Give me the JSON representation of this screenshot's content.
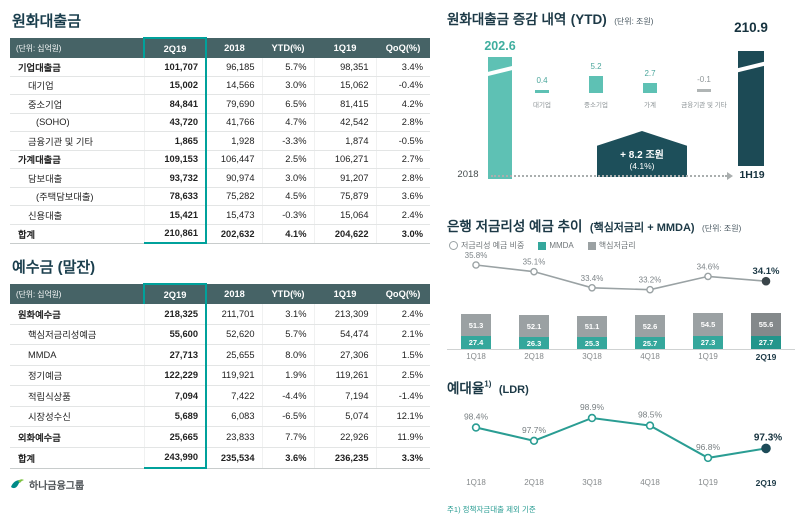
{
  "brand": {
    "logo_text": "하나금융그룹",
    "teal": "#00a19b",
    "dark": "#1c3946"
  },
  "tables": {
    "unit_label": "(단위: 십억원)",
    "columns": [
      "2Q19",
      "2018",
      "YTD(%)",
      "1Q19",
      "QoQ(%)"
    ],
    "loans": {
      "title": "원화대출금",
      "rows": [
        {
          "label": "기업대출금",
          "bold": true,
          "indent": 0,
          "values": [
            "101,707",
            "96,185",
            "5.7%",
            "98,351",
            "3.4%"
          ]
        },
        {
          "label": "대기업",
          "indent": 1,
          "values": [
            "15,002",
            "14,566",
            "3.0%",
            "15,062",
            "-0.4%"
          ]
        },
        {
          "label": "중소기업",
          "indent": 1,
          "values": [
            "84,841",
            "79,690",
            "6.5%",
            "81,415",
            "4.2%"
          ]
        },
        {
          "label": "(SOHO)",
          "indent": 2,
          "values": [
            "43,720",
            "41,766",
            "4.7%",
            "42,542",
            "2.8%"
          ]
        },
        {
          "label": "금융기관 및 기타",
          "indent": 1,
          "values": [
            "1,865",
            "1,928",
            "-3.3%",
            "1,874",
            "-0.5%"
          ]
        },
        {
          "label": "가계대출금",
          "bold": true,
          "indent": 0,
          "values": [
            "109,153",
            "106,447",
            "2.5%",
            "106,271",
            "2.7%"
          ]
        },
        {
          "label": "담보대출",
          "indent": 1,
          "values": [
            "93,732",
            "90,974",
            "3.0%",
            "91,207",
            "2.8%"
          ]
        },
        {
          "label": "(주택담보대출)",
          "indent": 2,
          "values": [
            "78,633",
            "75,282",
            "4.5%",
            "75,879",
            "3.6%"
          ]
        },
        {
          "label": "신용대출",
          "indent": 1,
          "values": [
            "15,421",
            "15,473",
            "-0.3%",
            "15,064",
            "2.4%"
          ]
        },
        {
          "label": "합계",
          "total": true,
          "indent": 0,
          "values": [
            "210,861",
            "202,632",
            "4.1%",
            "204,622",
            "3.0%"
          ]
        }
      ]
    },
    "deposits": {
      "title": "예수금 (말잔)",
      "rows": [
        {
          "label": "원화예수금",
          "bold": true,
          "indent": 0,
          "values": [
            "218,325",
            "211,701",
            "3.1%",
            "213,309",
            "2.4%"
          ]
        },
        {
          "label": "핵심저금리성예금",
          "indent": 1,
          "values": [
            "55,600",
            "52,620",
            "5.7%",
            "54,474",
            "2.1%"
          ]
        },
        {
          "label": "MMDA",
          "indent": 1,
          "values": [
            "27,713",
            "25,655",
            "8.0%",
            "27,306",
            "1.5%"
          ]
        },
        {
          "label": "정기예금",
          "indent": 1,
          "values": [
            "122,229",
            "119,921",
            "1.9%",
            "119,261",
            "2.5%"
          ]
        },
        {
          "label": "적립식상품",
          "indent": 1,
          "values": [
            "7,094",
            "7,422",
            "-4.4%",
            "7,194",
            "-1.4%"
          ]
        },
        {
          "label": "시장성수신",
          "indent": 1,
          "values": [
            "5,689",
            "6,083",
            "-6.5%",
            "5,074",
            "12.1%"
          ]
        },
        {
          "label": "외화예수금",
          "bold": true,
          "indent": 0,
          "values": [
            "25,665",
            "23,833",
            "7.7%",
            "22,926",
            "11.9%"
          ]
        },
        {
          "label": "합계",
          "total": true,
          "indent": 0,
          "values": [
            "243,990",
            "235,534",
            "3.6%",
            "236,235",
            "3.3%"
          ]
        }
      ]
    }
  },
  "chart_data": [
    {
      "type": "waterfall",
      "title": "원화대출금 증감 내역",
      "title_suffix": "(YTD)",
      "unit": "(단위: 조원)",
      "start": {
        "label": "2018",
        "value": 202.6
      },
      "deltas": [
        {
          "label": "대기업",
          "value": 0.4
        },
        {
          "label": "중소기업",
          "value": 5.2
        },
        {
          "label": "가계",
          "value": 2.7
        },
        {
          "label": "금융기관 및 기타",
          "value": -0.1
        }
      ],
      "end": {
        "label": "1H19",
        "value": 210.9
      },
      "annotation": {
        "line1": "+ 8.2 조원",
        "line2": "(4.1%)"
      },
      "colors": {
        "start_bar": "#5ec1b4",
        "end_bar": "#1c4a55",
        "delta_pos": "#5ec1b4",
        "delta_neg": "#b0b5b5",
        "callout": "#1d4f5a"
      }
    },
    {
      "type": "bar+line",
      "title": "은행 저금리성 예금 추이",
      "title_suffix": "(핵심저금리 + MMDA)",
      "unit": "(단위: 조원)",
      "categories": [
        "1Q18",
        "2Q18",
        "3Q18",
        "4Q18",
        "1Q19",
        "2Q19"
      ],
      "line_series": {
        "name": "저금리성 예금 비중",
        "values": [
          35.8,
          35.1,
          33.4,
          33.2,
          34.6,
          34.1
        ],
        "unit": "%",
        "color": "#9aa2a4"
      },
      "bar_series": [
        {
          "name": "MMDA",
          "values": [
            27.4,
            26.3,
            25.3,
            25.7,
            27.3,
            27.7
          ],
          "color": "#35a79c",
          "color_last": "#23958b"
        },
        {
          "name": "핵심저금리",
          "values": [
            51.3,
            52.1,
            51.1,
            52.6,
            54.5,
            55.6
          ],
          "color": "#9ba1a3",
          "color_last": "#84898b"
        }
      ],
      "legend_position": "top"
    },
    {
      "type": "line",
      "title": "예대율",
      "title_sup": "1)",
      "title_suffix": "(LDR)",
      "categories": [
        "1Q18",
        "2Q18",
        "3Q18",
        "4Q18",
        "1Q19",
        "2Q19"
      ],
      "values": [
        98.4,
        97.7,
        98.9,
        98.5,
        96.8,
        97.3
      ],
      "unit": "%",
      "color": "#2a9d93",
      "footnote": "주1) 정책자금대출 제외 기준"
    }
  ]
}
